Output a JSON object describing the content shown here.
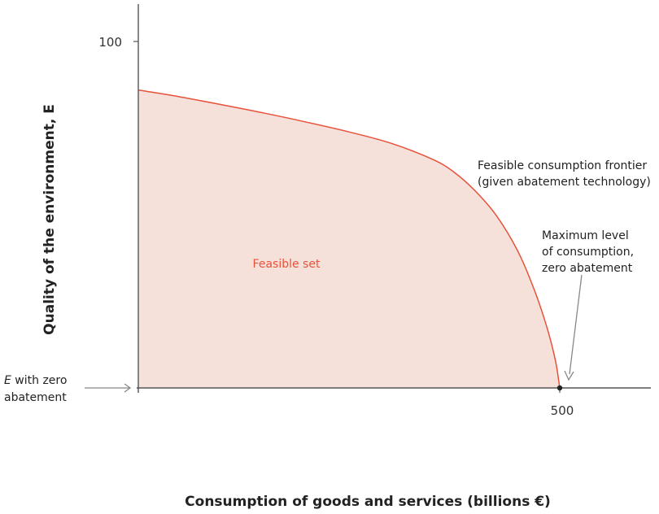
{
  "chart_data": {
    "type": "area",
    "xlabel": "Consumption of goods and services (billions €)",
    "ylabel": "Quality of the environment, E",
    "x_ticks": [
      {
        "value": 500,
        "label": "500"
      }
    ],
    "y_ticks": [
      {
        "value": 100,
        "label": "100"
      }
    ],
    "xlim": [
      0,
      600
    ],
    "ylim": [
      0,
      108
    ],
    "grid": false,
    "series": [
      {
        "x": [
          0,
          50,
          100,
          150,
          200,
          250,
          300,
          350,
          375,
          400,
          425,
          450,
          470,
          485,
          495,
          500
        ],
        "y": [
          86,
          84,
          81.7,
          79.3,
          76.7,
          73.9,
          70.6,
          65.9,
          62.2,
          56.8,
          49.7,
          39.6,
          28.2,
          17.3,
          7.8,
          0
        ]
      }
    ],
    "point": {
      "x": 500,
      "y": 0
    },
    "area_label": "Feasible set",
    "frontier_label": [
      "Feasible consumption frontier",
      "(given abatement technology)"
    ],
    "max_point_label": [
      "Maximum level",
      "of consumption,",
      "zero abatement"
    ],
    "e_zero_label": {
      "italic": "E",
      "rest": " with zero",
      "line2": "abatement"
    }
  },
  "colors": {
    "fill": "#f5e1d9",
    "line": "#e8513a",
    "axis": "#555555",
    "arrow": "#888888"
  }
}
